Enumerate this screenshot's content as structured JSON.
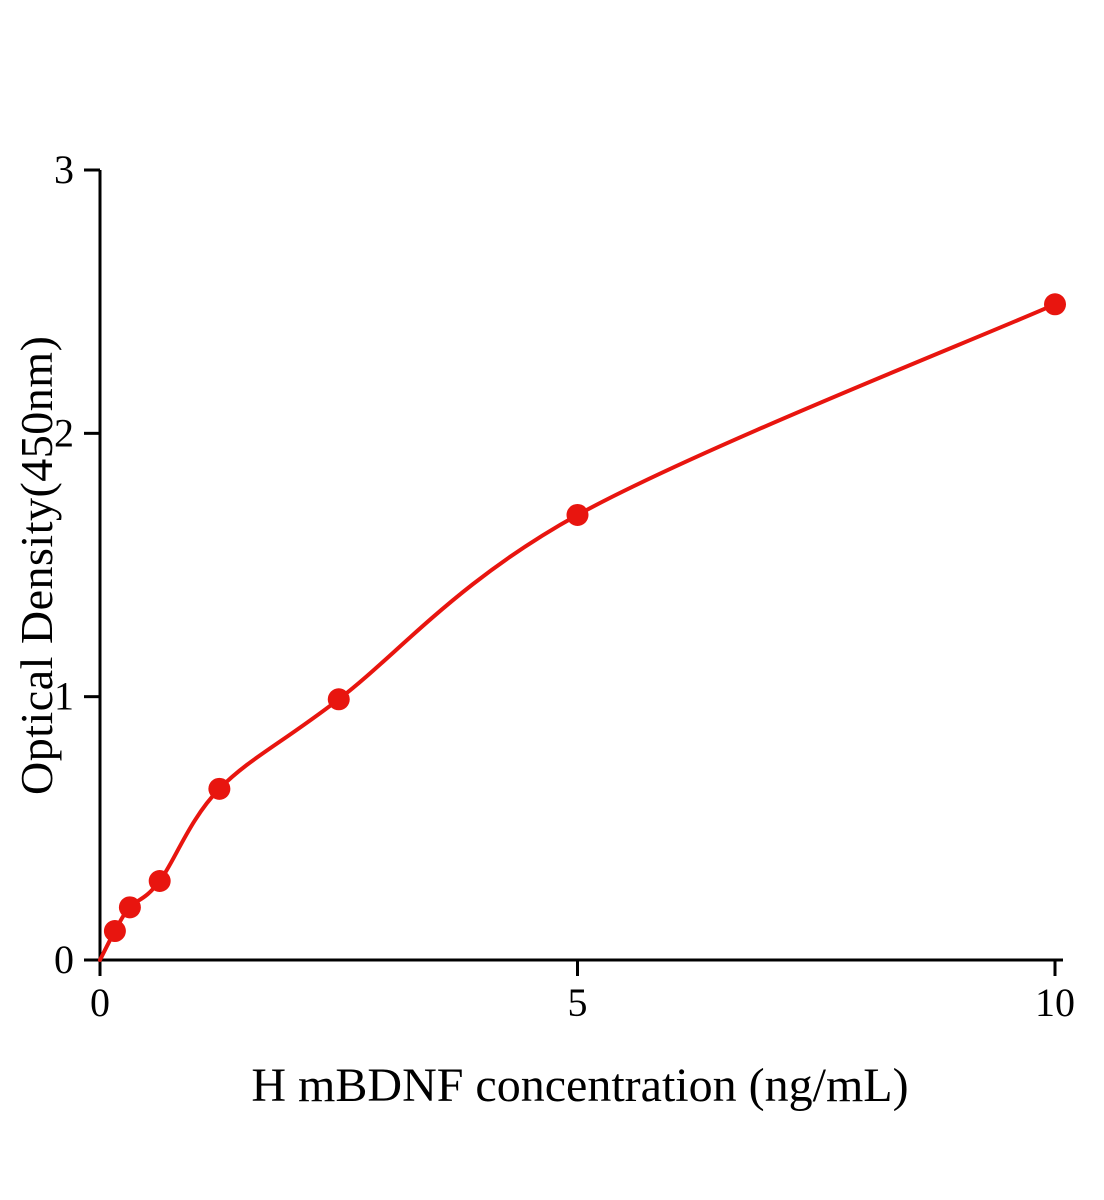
{
  "chart_data": {
    "type": "scatter",
    "title": "",
    "xlabel": "H mBDNF concentration (ng/mL)",
    "ylabel": "Optical Density(450nm)",
    "xlim": [
      0,
      10
    ],
    "ylim": [
      0,
      3
    ],
    "x_ticks": [
      0,
      5,
      10
    ],
    "y_ticks": [
      0,
      1,
      2,
      3
    ],
    "grid": false,
    "legend": "none",
    "curve_color": "#e8150f",
    "point_color": "#e8150f",
    "axis_color": "#000000",
    "points": [
      {
        "x": 0.156,
        "y": 0.11
      },
      {
        "x": 0.313,
        "y": 0.2
      },
      {
        "x": 0.625,
        "y": 0.3
      },
      {
        "x": 1.25,
        "y": 0.65
      },
      {
        "x": 2.5,
        "y": 0.99
      },
      {
        "x": 5,
        "y": 1.69
      },
      {
        "x": 10,
        "y": 2.49
      }
    ],
    "curve_origin": {
      "x": 0,
      "y": 0
    }
  }
}
